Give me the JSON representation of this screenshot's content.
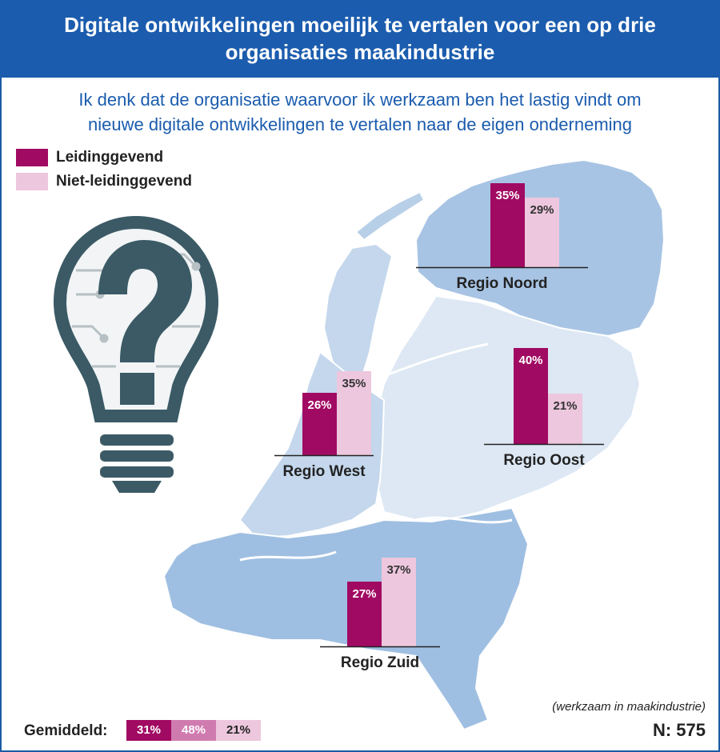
{
  "title_line1": "Digitale ontwikkelingen moeilijk te vertalen voor een op drie",
  "title_line2": "organisaties maakindustrie",
  "subtitle_line1": "Ik denk dat de organisatie waarvoor ik werkzaam ben het lastig vindt om",
  "subtitle_line2": "nieuwe digitale ontwikkelingen te vertalen naar de eigen onderneming",
  "legend": [
    {
      "label": "Leidinggevend",
      "color": "#a10a62"
    },
    {
      "label": "Niet-leidinggevend",
      "color": "#edc7de"
    }
  ],
  "colors": {
    "header": "#1b5cae",
    "map_light": "#dde8f4",
    "map_mid": "#b8cfe8",
    "map_dark": "#93b6dd",
    "bulb": "#3b5a66",
    "average_middle": "#d07bb0"
  },
  "icon": "lightbulb-question-icon",
  "chart_data": {
    "type": "bar",
    "categories": [
      "Regio Noord",
      "Regio West",
      "Regio Oost",
      "Regio Zuid"
    ],
    "series": [
      {
        "name": "Leidinggevend",
        "values": [
          35,
          26,
          40,
          27
        ]
      },
      {
        "name": "Niet-leidinggevend",
        "values": [
          29,
          35,
          21,
          37
        ]
      }
    ],
    "value_labels": {
      "Leidinggevend": [
        "35%",
        "26%",
        "40%",
        "27%"
      ],
      "Niet-leidinggevend": [
        "29%",
        "35%",
        "21%",
        "37%"
      ]
    },
    "unit": "%",
    "ylim": [
      0,
      45
    ]
  },
  "average": {
    "label": "Gemiddeld:",
    "values": [
      "31%",
      "48%",
      "21%"
    ]
  },
  "footnote": "(werkzaam in maakindustrie)",
  "sample": "N: 575"
}
